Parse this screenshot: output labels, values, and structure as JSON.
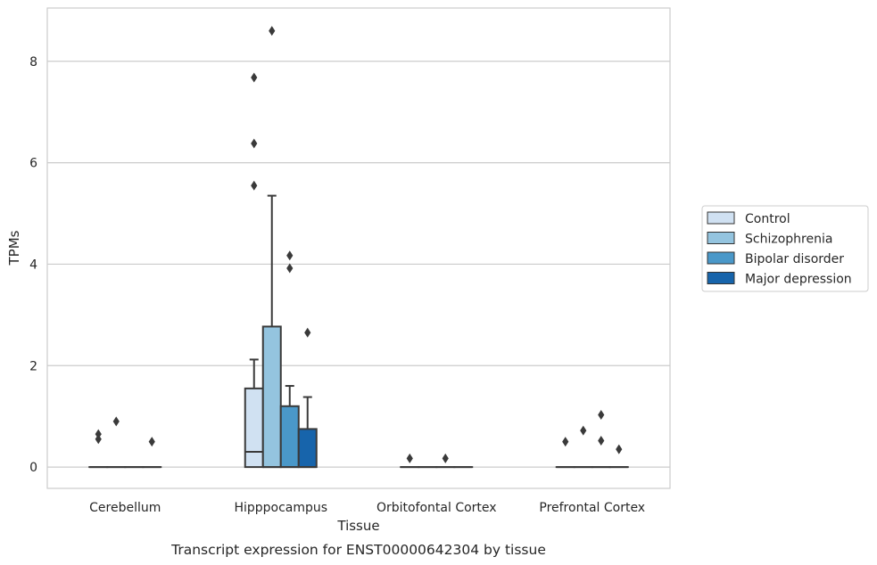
{
  "chart_data": {
    "type": "boxplot",
    "title": "",
    "caption": "Transcript expression for ENST00000642304 by tissue",
    "xlabel": "Tissue",
    "ylabel": "TPMs",
    "ylim": [
      -0.42,
      9.05
    ],
    "yticks": [
      0,
      2,
      4,
      6,
      8
    ],
    "grid": "horizontal",
    "legend_position": "right",
    "categories": [
      "Cerebellum",
      "Hipppocampus",
      "Orbitofontal Cortex",
      "Prefrontal Cortex"
    ],
    "series": [
      {
        "name": "Control",
        "color": "#d0e1f2",
        "boxes": [
          {
            "q1": 0,
            "median": 0,
            "q3": 0,
            "whisker_low": 0,
            "whisker_high": 0,
            "outliers": [
              0.55,
              0.65
            ]
          },
          {
            "q1": 0,
            "median": 0.3,
            "q3": 1.55,
            "whisker_low": 0,
            "whisker_high": 2.12,
            "outliers": [
              5.55,
              6.38,
              7.68
            ]
          },
          {
            "q1": 0,
            "median": 0,
            "q3": 0,
            "whisker_low": 0,
            "whisker_high": 0,
            "outliers": [
              0.17
            ]
          },
          {
            "q1": 0,
            "median": 0,
            "q3": 0,
            "whisker_low": 0,
            "whisker_high": 0,
            "outliers": [
              0.5
            ]
          }
        ]
      },
      {
        "name": "Schizophrenia",
        "color": "#94c4df",
        "boxes": [
          {
            "q1": 0,
            "median": 0,
            "q3": 0,
            "whisker_low": 0,
            "whisker_high": 0,
            "outliers": [
              0.9
            ]
          },
          {
            "q1": 0,
            "median": 0,
            "q3": 2.77,
            "whisker_low": 0,
            "whisker_high": 5.35,
            "outliers": [
              8.6
            ]
          },
          {
            "q1": 0,
            "median": 0,
            "q3": 0,
            "whisker_low": 0,
            "whisker_high": 0,
            "outliers": []
          },
          {
            "q1": 0,
            "median": 0,
            "q3": 0,
            "whisker_low": 0,
            "whisker_high": 0,
            "outliers": [
              0.72
            ]
          }
        ]
      },
      {
        "name": "Bipolar disorder",
        "color": "#4a98c9",
        "boxes": [
          {
            "q1": 0,
            "median": 0,
            "q3": 0,
            "whisker_low": 0,
            "whisker_high": 0,
            "outliers": []
          },
          {
            "q1": 0,
            "median": 0,
            "q3": 1.2,
            "whisker_low": 0,
            "whisker_high": 1.6,
            "outliers": [
              3.92,
              4.17
            ]
          },
          {
            "q1": 0,
            "median": 0,
            "q3": 0,
            "whisker_low": 0,
            "whisker_high": 0,
            "outliers": [
              0.17
            ]
          },
          {
            "q1": 0,
            "median": 0,
            "q3": 0,
            "whisker_low": 0,
            "whisker_high": 0,
            "outliers": [
              0.52,
              1.03
            ]
          }
        ]
      },
      {
        "name": "Major depression",
        "color": "#1764ab",
        "boxes": [
          {
            "q1": 0,
            "median": 0,
            "q3": 0,
            "whisker_low": 0,
            "whisker_high": 0,
            "outliers": [
              0.5
            ]
          },
          {
            "q1": 0,
            "median": 0,
            "q3": 0.75,
            "whisker_low": 0,
            "whisker_high": 1.38,
            "outliers": [
              2.65
            ]
          },
          {
            "q1": 0,
            "median": 0,
            "q3": 0,
            "whisker_low": 0,
            "whisker_high": 0,
            "outliers": []
          },
          {
            "q1": 0,
            "median": 0,
            "q3": 0,
            "whisker_low": 0,
            "whisker_high": 0,
            "outliers": [
              0.35
            ]
          }
        ]
      }
    ]
  }
}
